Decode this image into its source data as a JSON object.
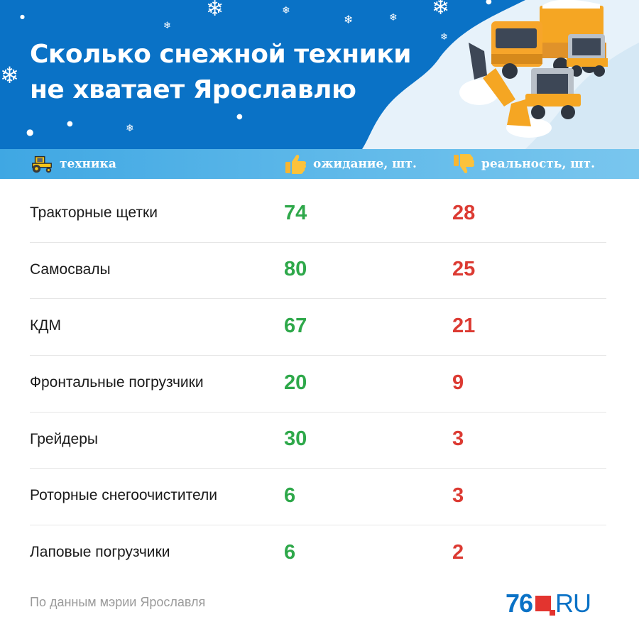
{
  "header": {
    "title_line1": "Сколько снежной техники",
    "title_line2": "не хватает Ярославлю",
    "bg_color": "#0a72c6"
  },
  "table": {
    "columns": [
      {
        "label": "техника",
        "icon": "tractor-icon"
      },
      {
        "label": "ожидание, шт.",
        "icon": "thumbs-up-icon"
      },
      {
        "label": "реальность, шт.",
        "icon": "thumbs-down-icon"
      }
    ],
    "rows": [
      {
        "name": "Тракторные щетки",
        "expected": "74",
        "actual": "28"
      },
      {
        "name": "Самосвалы",
        "expected": "80",
        "actual": "25"
      },
      {
        "name": "КДМ",
        "expected": "67",
        "actual": "21"
      },
      {
        "name": "Фронтальные погрузчики",
        "expected": "20",
        "actual": "9"
      },
      {
        "name": "Грейдеры",
        "expected": "30",
        "actual": "3"
      },
      {
        "name": "Роторные снегоочистители",
        "expected": "6",
        "actual": "3"
      },
      {
        "name": "Лаповые погрузчики",
        "expected": "6",
        "actual": "2"
      }
    ],
    "expected_color": "#2ea84a",
    "actual_color": "#dc3a32"
  },
  "footer": {
    "source": "По данным мэрии Ярославля",
    "logo_number": "76",
    "logo_text": "RU"
  }
}
